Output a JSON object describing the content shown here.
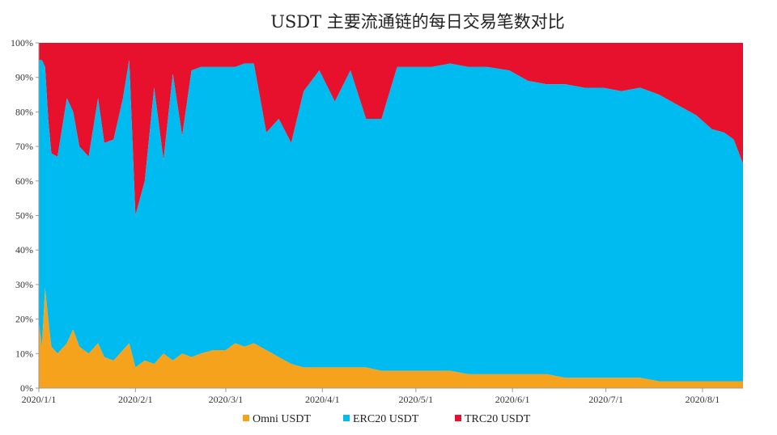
{
  "chart_data": {
    "type": "area",
    "stacked": "percent",
    "title": "USDT 主要流通链的每日交易笔数对比",
    "xlabel": "",
    "ylabel": "",
    "ylim": [
      0,
      100
    ],
    "y_ticks": [
      "0%",
      "10%",
      "20%",
      "30%",
      "40%",
      "50%",
      "60%",
      "70%",
      "80%",
      "90%",
      "100%"
    ],
    "x_ticks": [
      {
        "label": "2020/1/1",
        "date": "2020-01-01"
      },
      {
        "label": "2020/2/1",
        "date": "2020-02-01"
      },
      {
        "label": "2020/3/1",
        "date": "2020-03-01"
      },
      {
        "label": "2020/4/1",
        "date": "2020-04-01"
      },
      {
        "label": "2020/5/1",
        "date": "2020-05-01"
      },
      {
        "label": "2020/6/1",
        "date": "2020-06-01"
      },
      {
        "label": "2020/7/1",
        "date": "2020-07-01"
      },
      {
        "label": "2020/8/1",
        "date": "2020-08-01"
      }
    ],
    "x_range": [
      "2020-01-01",
      "2020-08-14"
    ],
    "legend_position": "bottom",
    "series": [
      {
        "name": "Omni USDT",
        "color": "#F5A21D",
        "values": [
          [
            "2020-01-01",
            19
          ],
          [
            "2020-01-02",
            12
          ],
          [
            "2020-01-03",
            29
          ],
          [
            "2020-01-04",
            20
          ],
          [
            "2020-01-05",
            12
          ],
          [
            "2020-01-07",
            10
          ],
          [
            "2020-01-10",
            13
          ],
          [
            "2020-01-12",
            17
          ],
          [
            "2020-01-14",
            12
          ],
          [
            "2020-01-17",
            10
          ],
          [
            "2020-01-20",
            13
          ],
          [
            "2020-01-22",
            9
          ],
          [
            "2020-01-25",
            8
          ],
          [
            "2020-01-28",
            11
          ],
          [
            "2020-01-30",
            13
          ],
          [
            "2020-02-01",
            6
          ],
          [
            "2020-02-04",
            8
          ],
          [
            "2020-02-07",
            7
          ],
          [
            "2020-02-10",
            10
          ],
          [
            "2020-02-13",
            8
          ],
          [
            "2020-02-16",
            10
          ],
          [
            "2020-02-19",
            9
          ],
          [
            "2020-02-22",
            10
          ],
          [
            "2020-02-26",
            11
          ],
          [
            "2020-03-01",
            11
          ],
          [
            "2020-03-04",
            13
          ],
          [
            "2020-03-07",
            12
          ],
          [
            "2020-03-10",
            13
          ],
          [
            "2020-03-14",
            11
          ],
          [
            "2020-03-18",
            9
          ],
          [
            "2020-03-22",
            7
          ],
          [
            "2020-03-26",
            6
          ],
          [
            "2020-03-31",
            6
          ],
          [
            "2020-04-05",
            6
          ],
          [
            "2020-04-10",
            6
          ],
          [
            "2020-04-15",
            6
          ],
          [
            "2020-04-20",
            5
          ],
          [
            "2020-04-25",
            5
          ],
          [
            "2020-05-01",
            5
          ],
          [
            "2020-05-06",
            5
          ],
          [
            "2020-05-12",
            5
          ],
          [
            "2020-05-18",
            4
          ],
          [
            "2020-05-24",
            4
          ],
          [
            "2020-05-31",
            4
          ],
          [
            "2020-06-06",
            4
          ],
          [
            "2020-06-12",
            4
          ],
          [
            "2020-06-18",
            3
          ],
          [
            "2020-06-24",
            3
          ],
          [
            "2020-06-30",
            3
          ],
          [
            "2020-07-06",
            3
          ],
          [
            "2020-07-12",
            3
          ],
          [
            "2020-07-18",
            2
          ],
          [
            "2020-07-24",
            2
          ],
          [
            "2020-07-30",
            2
          ],
          [
            "2020-08-04",
            2
          ],
          [
            "2020-08-08",
            2
          ],
          [
            "2020-08-11",
            2
          ],
          [
            "2020-08-14",
            2
          ]
        ]
      },
      {
        "name": "ERC20 USDT",
        "color": "#00BBF0",
        "values": [
          [
            "2020-01-01",
            76
          ],
          [
            "2020-01-02",
            83
          ],
          [
            "2020-01-03",
            64
          ],
          [
            "2020-01-04",
            58
          ],
          [
            "2020-01-05",
            56
          ],
          [
            "2020-01-07",
            57
          ],
          [
            "2020-01-10",
            71
          ],
          [
            "2020-01-12",
            63
          ],
          [
            "2020-01-14",
            58
          ],
          [
            "2020-01-17",
            57
          ],
          [
            "2020-01-20",
            71
          ],
          [
            "2020-01-22",
            62
          ],
          [
            "2020-01-25",
            64
          ],
          [
            "2020-01-28",
            73
          ],
          [
            "2020-01-30",
            82
          ],
          [
            "2020-02-01",
            44
          ],
          [
            "2020-02-04",
            52
          ],
          [
            "2020-02-07",
            80
          ],
          [
            "2020-02-10",
            56
          ],
          [
            "2020-02-13",
            83
          ],
          [
            "2020-02-16",
            63
          ],
          [
            "2020-02-19",
            83
          ],
          [
            "2020-02-22",
            83
          ],
          [
            "2020-02-26",
            82
          ],
          [
            "2020-03-01",
            82
          ],
          [
            "2020-03-04",
            80
          ],
          [
            "2020-03-07",
            82
          ],
          [
            "2020-03-10",
            81
          ],
          [
            "2020-03-14",
            63
          ],
          [
            "2020-03-18",
            69
          ],
          [
            "2020-03-22",
            64
          ],
          [
            "2020-03-26",
            80
          ],
          [
            "2020-03-31",
            86
          ],
          [
            "2020-04-05",
            77
          ],
          [
            "2020-04-10",
            86
          ],
          [
            "2020-04-15",
            72
          ],
          [
            "2020-04-20",
            73
          ],
          [
            "2020-04-25",
            88
          ],
          [
            "2020-05-01",
            88
          ],
          [
            "2020-05-06",
            88
          ],
          [
            "2020-05-12",
            89
          ],
          [
            "2020-05-18",
            89
          ],
          [
            "2020-05-24",
            89
          ],
          [
            "2020-05-31",
            88
          ],
          [
            "2020-06-06",
            85
          ],
          [
            "2020-06-12",
            84
          ],
          [
            "2020-06-18",
            85
          ],
          [
            "2020-06-24",
            84
          ],
          [
            "2020-06-30",
            84
          ],
          [
            "2020-07-06",
            83
          ],
          [
            "2020-07-12",
            84
          ],
          [
            "2020-07-18",
            83
          ],
          [
            "2020-07-24",
            80
          ],
          [
            "2020-07-30",
            77
          ],
          [
            "2020-08-04",
            73
          ],
          [
            "2020-08-08",
            72
          ],
          [
            "2020-08-11",
            70
          ],
          [
            "2020-08-14",
            63
          ]
        ]
      },
      {
        "name": "TRC20 USDT",
        "color": "#E8112D",
        "values": [
          [
            "2020-01-01",
            5
          ],
          [
            "2020-01-02",
            5
          ],
          [
            "2020-01-03",
            7
          ],
          [
            "2020-01-04",
            22
          ],
          [
            "2020-01-05",
            32
          ],
          [
            "2020-01-07",
            33
          ],
          [
            "2020-01-10",
            16
          ],
          [
            "2020-01-12",
            20
          ],
          [
            "2020-01-14",
            30
          ],
          [
            "2020-01-17",
            33
          ],
          [
            "2020-01-20",
            16
          ],
          [
            "2020-01-22",
            29
          ],
          [
            "2020-01-25",
            28
          ],
          [
            "2020-01-28",
            16
          ],
          [
            "2020-01-30",
            5
          ],
          [
            "2020-02-01",
            50
          ],
          [
            "2020-02-04",
            40
          ],
          [
            "2020-02-07",
            13
          ],
          [
            "2020-02-10",
            34
          ],
          [
            "2020-02-13",
            9
          ],
          [
            "2020-02-16",
            27
          ],
          [
            "2020-02-19",
            8
          ],
          [
            "2020-02-22",
            7
          ],
          [
            "2020-02-26",
            7
          ],
          [
            "2020-03-01",
            7
          ],
          [
            "2020-03-04",
            7
          ],
          [
            "2020-03-07",
            6
          ],
          [
            "2020-03-10",
            6
          ],
          [
            "2020-03-14",
            26
          ],
          [
            "2020-03-18",
            22
          ],
          [
            "2020-03-22",
            29
          ],
          [
            "2020-03-26",
            14
          ],
          [
            "2020-03-31",
            8
          ],
          [
            "2020-04-05",
            17
          ],
          [
            "2020-04-10",
            8
          ],
          [
            "2020-04-15",
            22
          ],
          [
            "2020-04-20",
            22
          ],
          [
            "2020-04-25",
            7
          ],
          [
            "2020-05-01",
            7
          ],
          [
            "2020-05-06",
            7
          ],
          [
            "2020-05-12",
            6
          ],
          [
            "2020-05-18",
            7
          ],
          [
            "2020-05-24",
            7
          ],
          [
            "2020-05-31",
            8
          ],
          [
            "2020-06-06",
            11
          ],
          [
            "2020-06-12",
            12
          ],
          [
            "2020-06-18",
            12
          ],
          [
            "2020-06-24",
            13
          ],
          [
            "2020-06-30",
            13
          ],
          [
            "2020-07-06",
            14
          ],
          [
            "2020-07-12",
            13
          ],
          [
            "2020-07-18",
            15
          ],
          [
            "2020-07-24",
            18
          ],
          [
            "2020-07-30",
            21
          ],
          [
            "2020-08-04",
            25
          ],
          [
            "2020-08-08",
            26
          ],
          [
            "2020-08-11",
            28
          ],
          [
            "2020-08-14",
            35
          ]
        ]
      }
    ]
  }
}
